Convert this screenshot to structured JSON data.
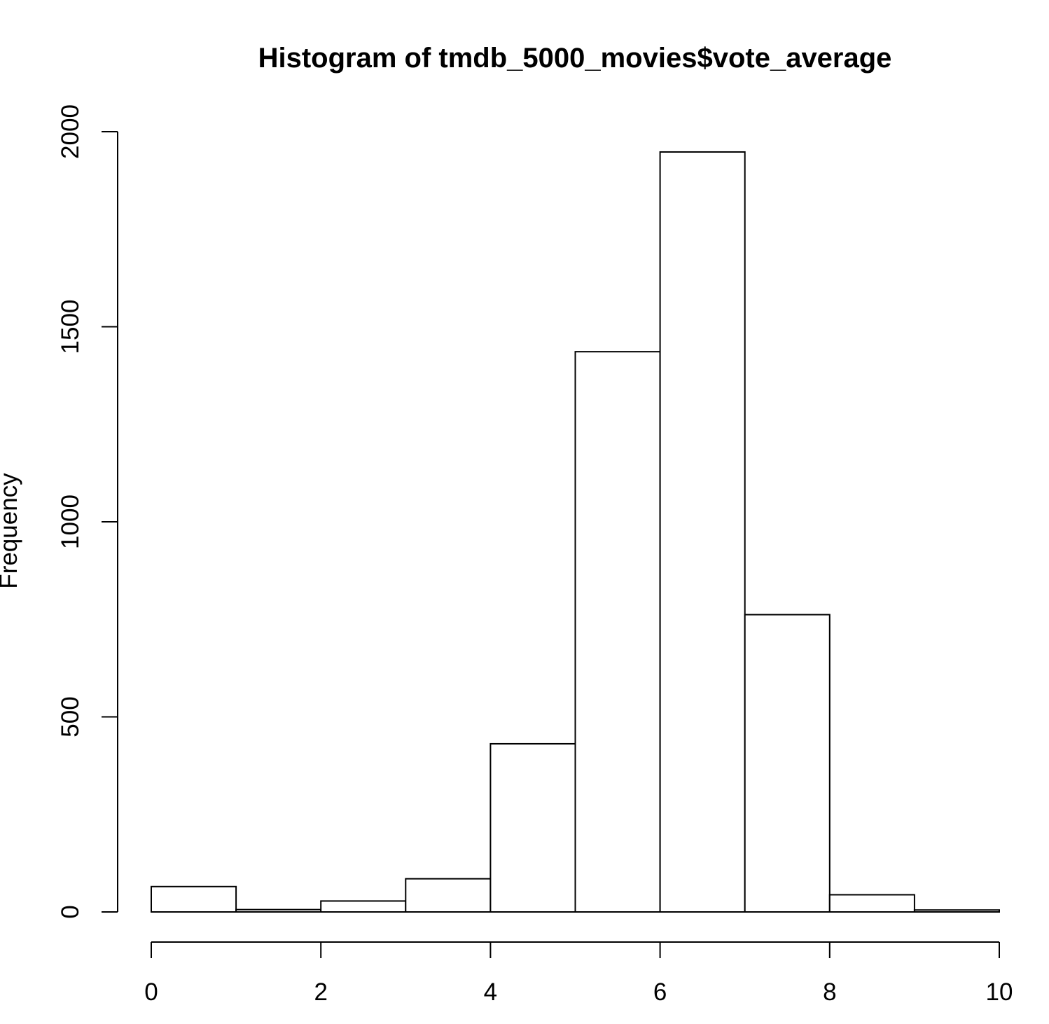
{
  "chart_data": {
    "type": "bar",
    "title": "Histogram of tmdb_5000_movies$vote_average",
    "xlabel": "",
    "ylabel": "Frequency",
    "bins": [
      {
        "start": 0,
        "end": 1,
        "count": 65
      },
      {
        "start": 1,
        "end": 2,
        "count": 6
      },
      {
        "start": 2,
        "end": 3,
        "count": 28
      },
      {
        "start": 3,
        "end": 4,
        "count": 85
      },
      {
        "start": 4,
        "end": 5,
        "count": 431
      },
      {
        "start": 5,
        "end": 6,
        "count": 1436
      },
      {
        "start": 6,
        "end": 7,
        "count": 1948
      },
      {
        "start": 7,
        "end": 8,
        "count": 762
      },
      {
        "start": 8,
        "end": 9,
        "count": 44
      },
      {
        "start": 9,
        "end": 10,
        "count": 5
      }
    ],
    "xlim": [
      0,
      10
    ],
    "ylim": [
      0,
      2000
    ],
    "x_ticks": [
      "0",
      "2",
      "4",
      "6",
      "8",
      "10"
    ],
    "y_ticks": [
      "0",
      "500",
      "1000",
      "1500",
      "2000"
    ],
    "grid": false,
    "colors": {
      "bar_fill": "#ffffff",
      "bar_stroke": "#000000",
      "background": "#ffffff"
    }
  }
}
